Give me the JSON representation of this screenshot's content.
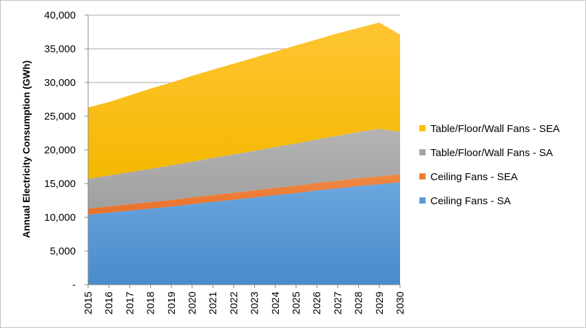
{
  "chart_data": {
    "type": "area",
    "stacked": true,
    "title": "",
    "xlabel": "",
    "ylabel": "Annual Electricity Consumption (GWh)",
    "ylim": [
      0,
      40000
    ],
    "yticks": [
      0,
      5000,
      10000,
      15000,
      20000,
      25000,
      30000,
      35000,
      40000
    ],
    "ytick_labels": [
      "-",
      "5,000",
      "10,000",
      "15,000",
      "20,000",
      "25,000",
      "30,000",
      "35,000",
      "40,000"
    ],
    "grid": "horizontal",
    "legend_position": "right",
    "x": [
      "2015",
      "2016",
      "2017",
      "2018",
      "2019",
      "2020",
      "2021",
      "2022",
      "2023",
      "2024",
      "2025",
      "2026",
      "2027",
      "2028",
      "2029",
      "2030"
    ],
    "series": [
      {
        "name": "Ceiling Fans - SA",
        "color": "#5b9bd5",
        "values": [
          10400,
          10700,
          11000,
          11300,
          11600,
          11950,
          12300,
          12600,
          12950,
          13300,
          13600,
          14000,
          14300,
          14650,
          14900,
          15200
        ]
      },
      {
        "name": "Ceiling Fans - SEA",
        "color": "#ed7d31",
        "values": [
          900,
          920,
          940,
          960,
          980,
          1000,
          1020,
          1040,
          1060,
          1080,
          1100,
          1120,
          1140,
          1160,
          1180,
          1200
        ]
      },
      {
        "name": "Table/Floor/Wall Fans - SA",
        "color": "#a5a5a5",
        "values": [
          4400,
          4590,
          4760,
          4930,
          5120,
          5300,
          5500,
          5700,
          5850,
          6050,
          6250,
          6450,
          6650,
          6850,
          7050,
          6300
        ]
      },
      {
        "name": "Table/Floor/Wall Fans - SEA",
        "color": "#ffc000",
        "values": [
          10600,
          10890,
          11400,
          11910,
          12300,
          12750,
          13080,
          13460,
          13840,
          14170,
          14550,
          14830,
          15210,
          15440,
          15770,
          14400
        ]
      }
    ],
    "legend_order": [
      "Table/Floor/Wall Fans - SEA",
      "Table/Floor/Wall Fans - SA",
      "Ceiling Fans - SEA",
      "Ceiling Fans - SA"
    ]
  }
}
